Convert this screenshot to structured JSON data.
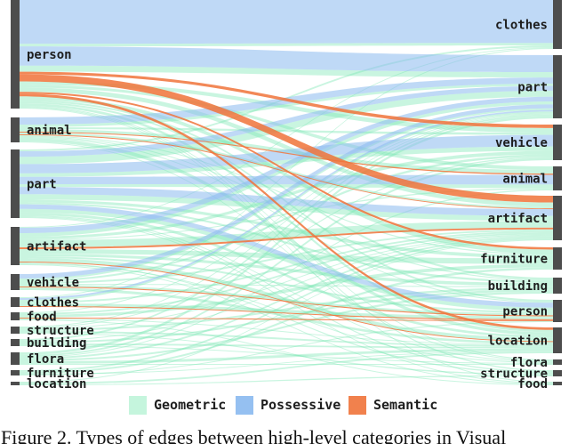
{
  "diagram": {
    "left_nodes": [
      "person",
      "animal",
      "part",
      "artifact",
      "vehicle",
      "clothes",
      "food",
      "structure",
      "building",
      "flora",
      "furniture",
      "location"
    ],
    "right_nodes": [
      "clothes",
      "part",
      "vehicle",
      "animal",
      "artifact",
      "furniture",
      "building",
      "person",
      "location",
      "flora",
      "structure",
      "food"
    ],
    "node_color": "#4d4d4d",
    "links": [
      {
        "from": "person",
        "to": "clothes",
        "type": "Possessive",
        "value": 50
      },
      {
        "from": "person",
        "to": "clothes",
        "type": "Geometric",
        "value": 3
      },
      {
        "from": "person",
        "to": "part",
        "type": "Possessive",
        "value": 22
      },
      {
        "from": "person",
        "to": "part",
        "type": "Geometric",
        "value": 7
      },
      {
        "from": "person",
        "to": "vehicle",
        "type": "Semantic",
        "value": 3
      },
      {
        "from": "person",
        "to": "artifact",
        "type": "Semantic",
        "value": 8
      },
      {
        "from": "person",
        "to": "vehicle",
        "type": "Geometric",
        "value": 4
      },
      {
        "from": "person",
        "to": "animal",
        "type": "Geometric",
        "value": 3
      },
      {
        "from": "person",
        "to": "artifact",
        "type": "Geometric",
        "value": 5
      },
      {
        "from": "person",
        "to": "furniture",
        "type": "Semantic",
        "value": 2
      },
      {
        "from": "person",
        "to": "location",
        "type": "Semantic",
        "value": 3
      },
      {
        "from": "person",
        "to": "furniture",
        "type": "Geometric",
        "value": 4
      },
      {
        "from": "person",
        "to": "building",
        "type": "Geometric",
        "value": 2
      },
      {
        "from": "person",
        "to": "person",
        "type": "Geometric",
        "value": 2
      },
      {
        "from": "person",
        "to": "location",
        "type": "Geometric",
        "value": 3
      },
      {
        "from": "person",
        "to": "flora",
        "type": "Geometric",
        "value": 1
      },
      {
        "from": "person",
        "to": "structure",
        "type": "Geometric",
        "value": 1
      },
      {
        "from": "person",
        "to": "food",
        "type": "Geometric",
        "value": 1
      },
      {
        "from": "animal",
        "to": "part",
        "type": "Possessive",
        "value": 8
      },
      {
        "from": "animal",
        "to": "part",
        "type": "Geometric",
        "value": 3
      },
      {
        "from": "animal",
        "to": "vehicle",
        "type": "Geometric",
        "value": 2
      },
      {
        "from": "animal",
        "to": "animal",
        "type": "Geometric",
        "value": 3
      },
      {
        "from": "animal",
        "to": "animal",
        "type": "Semantic",
        "value": 1
      },
      {
        "from": "animal",
        "to": "artifact",
        "type": "Geometric",
        "value": 2
      },
      {
        "from": "animal",
        "to": "artifact",
        "type": "Semantic",
        "value": 1
      },
      {
        "from": "animal",
        "to": "furniture",
        "type": "Geometric",
        "value": 1
      },
      {
        "from": "animal",
        "to": "building",
        "type": "Geometric",
        "value": 1
      },
      {
        "from": "animal",
        "to": "person",
        "type": "Geometric",
        "value": 1
      },
      {
        "from": "animal",
        "to": "location",
        "type": "Geometric",
        "value": 4
      },
      {
        "from": "animal",
        "to": "flora",
        "type": "Geometric",
        "value": 1
      },
      {
        "from": "part",
        "to": "clothes",
        "type": "Geometric",
        "value": 2
      },
      {
        "from": "part",
        "to": "part",
        "type": "Possessive",
        "value": 6
      },
      {
        "from": "part",
        "to": "part",
        "type": "Geometric",
        "value": 8
      },
      {
        "from": "part",
        "to": "vehicle",
        "type": "Possessive",
        "value": 10
      },
      {
        "from": "part",
        "to": "vehicle",
        "type": "Geometric",
        "value": 4
      },
      {
        "from": "part",
        "to": "animal",
        "type": "Possessive",
        "value": 8
      },
      {
        "from": "part",
        "to": "animal",
        "type": "Geometric",
        "value": 3
      },
      {
        "from": "part",
        "to": "artifact",
        "type": "Possessive",
        "value": 8
      },
      {
        "from": "part",
        "to": "artifact",
        "type": "Geometric",
        "value": 6
      },
      {
        "from": "part",
        "to": "furniture",
        "type": "Geometric",
        "value": 3
      },
      {
        "from": "part",
        "to": "building",
        "type": "Geometric",
        "value": 2
      },
      {
        "from": "part",
        "to": "person",
        "type": "Possessive",
        "value": 5
      },
      {
        "from": "part",
        "to": "person",
        "type": "Geometric",
        "value": 4
      },
      {
        "from": "part",
        "to": "location",
        "type": "Geometric",
        "value": 3
      },
      {
        "from": "part",
        "to": "flora",
        "type": "Geometric",
        "value": 1
      },
      {
        "from": "part",
        "to": "structure",
        "type": "Geometric",
        "value": 1
      },
      {
        "from": "part",
        "to": "food",
        "type": "Geometric",
        "value": 1
      },
      {
        "from": "artifact",
        "to": "clothes",
        "type": "Geometric",
        "value": 1
      },
      {
        "from": "artifact",
        "to": "part",
        "type": "Possessive",
        "value": 6
      },
      {
        "from": "artifact",
        "to": "part",
        "type": "Geometric",
        "value": 4
      },
      {
        "from": "artifact",
        "to": "vehicle",
        "type": "Geometric",
        "value": 3
      },
      {
        "from": "artifact",
        "to": "animal",
        "type": "Geometric",
        "value": 1
      },
      {
        "from": "artifact",
        "to": "artifact",
        "type": "Geometric",
        "value": 8
      },
      {
        "from": "artifact",
        "to": "artifact",
        "type": "Semantic",
        "value": 2
      },
      {
        "from": "artifact",
        "to": "furniture",
        "type": "Geometric",
        "value": 5
      },
      {
        "from": "artifact",
        "to": "building",
        "type": "Geometric",
        "value": 3
      },
      {
        "from": "artifact",
        "to": "person",
        "type": "Geometric",
        "value": 2
      },
      {
        "from": "artifact",
        "to": "location",
        "type": "Geometric",
        "value": 4
      },
      {
        "from": "artifact",
        "to": "location",
        "type": "Semantic",
        "value": 1
      },
      {
        "from": "artifact",
        "to": "structure",
        "type": "Geometric",
        "value": 1
      },
      {
        "from": "artifact",
        "to": "flora",
        "type": "Geometric",
        "value": 1
      },
      {
        "from": "artifact",
        "to": "food",
        "type": "Geometric",
        "value": 1
      },
      {
        "from": "vehicle",
        "to": "part",
        "type": "Possessive",
        "value": 5
      },
      {
        "from": "vehicle",
        "to": "part",
        "type": "Geometric",
        "value": 2
      },
      {
        "from": "vehicle",
        "to": "vehicle",
        "type": "Geometric",
        "value": 2
      },
      {
        "from": "vehicle",
        "to": "artifact",
        "type": "Geometric",
        "value": 2
      },
      {
        "from": "vehicle",
        "to": "building",
        "type": "Geometric",
        "value": 1
      },
      {
        "from": "vehicle",
        "to": "person",
        "type": "Geometric",
        "value": 2
      },
      {
        "from": "vehicle",
        "to": "person",
        "type": "Semantic",
        "value": 1
      },
      {
        "from": "vehicle",
        "to": "location",
        "type": "Geometric",
        "value": 3
      },
      {
        "from": "clothes",
        "to": "clothes",
        "type": "Geometric",
        "value": 1
      },
      {
        "from": "clothes",
        "to": "part",
        "type": "Possessive",
        "value": 2
      },
      {
        "from": "clothes",
        "to": "part",
        "type": "Geometric",
        "value": 2
      },
      {
        "from": "clothes",
        "to": "artifact",
        "type": "Geometric",
        "value": 2
      },
      {
        "from": "clothes",
        "to": "person",
        "type": "Geometric",
        "value": 3
      },
      {
        "from": "clothes",
        "to": "person",
        "type": "Semantic",
        "value": 1
      },
      {
        "from": "food",
        "to": "part",
        "type": "Geometric",
        "value": 1
      },
      {
        "from": "food",
        "to": "artifact",
        "type": "Geometric",
        "value": 2
      },
      {
        "from": "food",
        "to": "furniture",
        "type": "Geometric",
        "value": 3
      },
      {
        "from": "food",
        "to": "person",
        "type": "Semantic",
        "value": 1
      },
      {
        "from": "food",
        "to": "location",
        "type": "Geometric",
        "value": 1
      },
      {
        "from": "food",
        "to": "food",
        "type": "Geometric",
        "value": 1
      },
      {
        "from": "structure",
        "to": "part",
        "type": "Geometric",
        "value": 1
      },
      {
        "from": "structure",
        "to": "vehicle",
        "type": "Geometric",
        "value": 1
      },
      {
        "from": "structure",
        "to": "artifact",
        "type": "Geometric",
        "value": 1
      },
      {
        "from": "structure",
        "to": "building",
        "type": "Geometric",
        "value": 2
      },
      {
        "from": "structure",
        "to": "location",
        "type": "Geometric",
        "value": 2
      },
      {
        "from": "structure",
        "to": "structure",
        "type": "Geometric",
        "value": 1
      },
      {
        "from": "building",
        "to": "part",
        "type": "Geometric",
        "value": 2
      },
      {
        "from": "building",
        "to": "artifact",
        "type": "Geometric",
        "value": 1
      },
      {
        "from": "building",
        "to": "building",
        "type": "Geometric",
        "value": 2
      },
      {
        "from": "building",
        "to": "location",
        "type": "Geometric",
        "value": 2
      },
      {
        "from": "building",
        "to": "flora",
        "type": "Geometric",
        "value": 1
      },
      {
        "from": "flora",
        "to": "part",
        "type": "Geometric",
        "value": 3
      },
      {
        "from": "flora",
        "to": "vehicle",
        "type": "Geometric",
        "value": 2
      },
      {
        "from": "flora",
        "to": "animal",
        "type": "Geometric",
        "value": 1
      },
      {
        "from": "flora",
        "to": "artifact",
        "type": "Geometric",
        "value": 2
      },
      {
        "from": "flora",
        "to": "building",
        "type": "Geometric",
        "value": 2
      },
      {
        "from": "flora",
        "to": "location",
        "type": "Geometric",
        "value": 3
      },
      {
        "from": "flora",
        "to": "flora",
        "type": "Geometric",
        "value": 1
      },
      {
        "from": "furniture",
        "to": "artifact",
        "type": "Geometric",
        "value": 2
      },
      {
        "from": "furniture",
        "to": "furniture",
        "type": "Geometric",
        "value": 2
      },
      {
        "from": "furniture",
        "to": "location",
        "type": "Geometric",
        "value": 1
      },
      {
        "from": "furniture",
        "to": "person",
        "type": "Geometric",
        "value": 1
      },
      {
        "from": "location",
        "to": "artifact",
        "type": "Geometric",
        "value": 1
      },
      {
        "from": "location",
        "to": "location",
        "type": "Geometric",
        "value": 2
      },
      {
        "from": "location",
        "to": "structure",
        "type": "Geometric",
        "value": 1
      }
    ]
  },
  "legend": [
    {
      "label": "Geometric",
      "color": "#7fe8b4"
    },
    {
      "label": "Possessive",
      "color": "#8ab9ef"
    },
    {
      "label": "Semantic",
      "color": "#f0733a"
    }
  ],
  "caption": "Figure 2. Types of edges between high-level categories in Visual"
}
